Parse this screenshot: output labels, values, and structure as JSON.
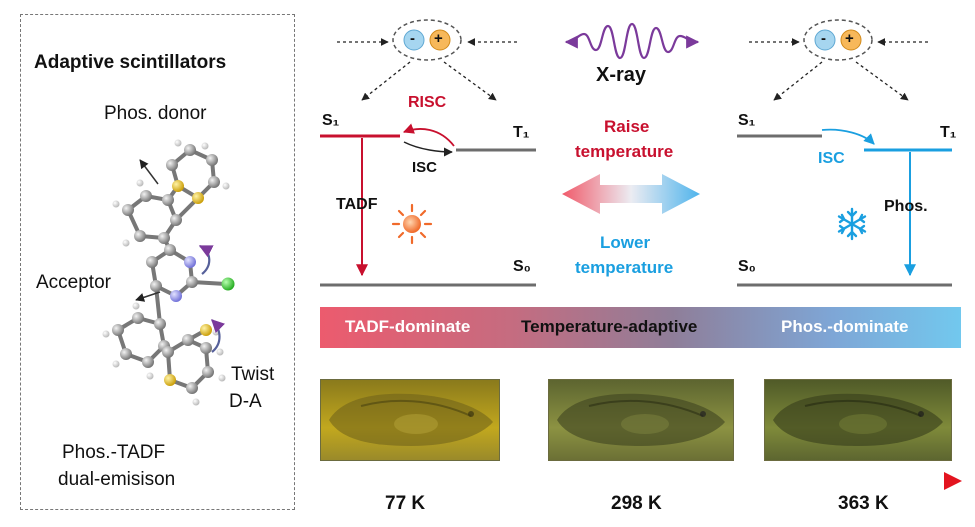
{
  "left_panel": {
    "title": "Adaptive scintillators",
    "phos_donor": "Phos. donor",
    "acceptor": "Acceptor",
    "twist_line1": "Twist",
    "twist_line2": "D-A",
    "dual_line1": "Phos.-TADF",
    "dual_line2": "dual-emisison"
  },
  "center": {
    "xray": "X-ray",
    "raise_line1": "Raise",
    "raise_line2": "temperature",
    "lower_line1": "Lower",
    "lower_line2": "temperature"
  },
  "left_diagram": {
    "s1": "S₁",
    "t1": "T₁",
    "s0": "S₀",
    "risc": "RISC",
    "isc": "ISC",
    "tadf": "TADF"
  },
  "right_diagram": {
    "s1": "S₁",
    "t1": "T₁",
    "s0": "S₀",
    "isc": "ISC",
    "phos": "Phos."
  },
  "charges": {
    "minus": "-",
    "plus": "+"
  },
  "bar": {
    "left": "TADF-dominate",
    "middle": "Temperature-adaptive",
    "right": "Phos.-dominate"
  },
  "temperatures": [
    "77 K",
    "298 K",
    "363 K"
  ],
  "icons": {
    "sun": "sun-icon",
    "snow": "snowflake-icon",
    "wave": "xray-wave-icon"
  },
  "colors": {
    "red": "#c8102e",
    "blue": "#1a9fe0",
    "gray": "#6d6d6d"
  }
}
